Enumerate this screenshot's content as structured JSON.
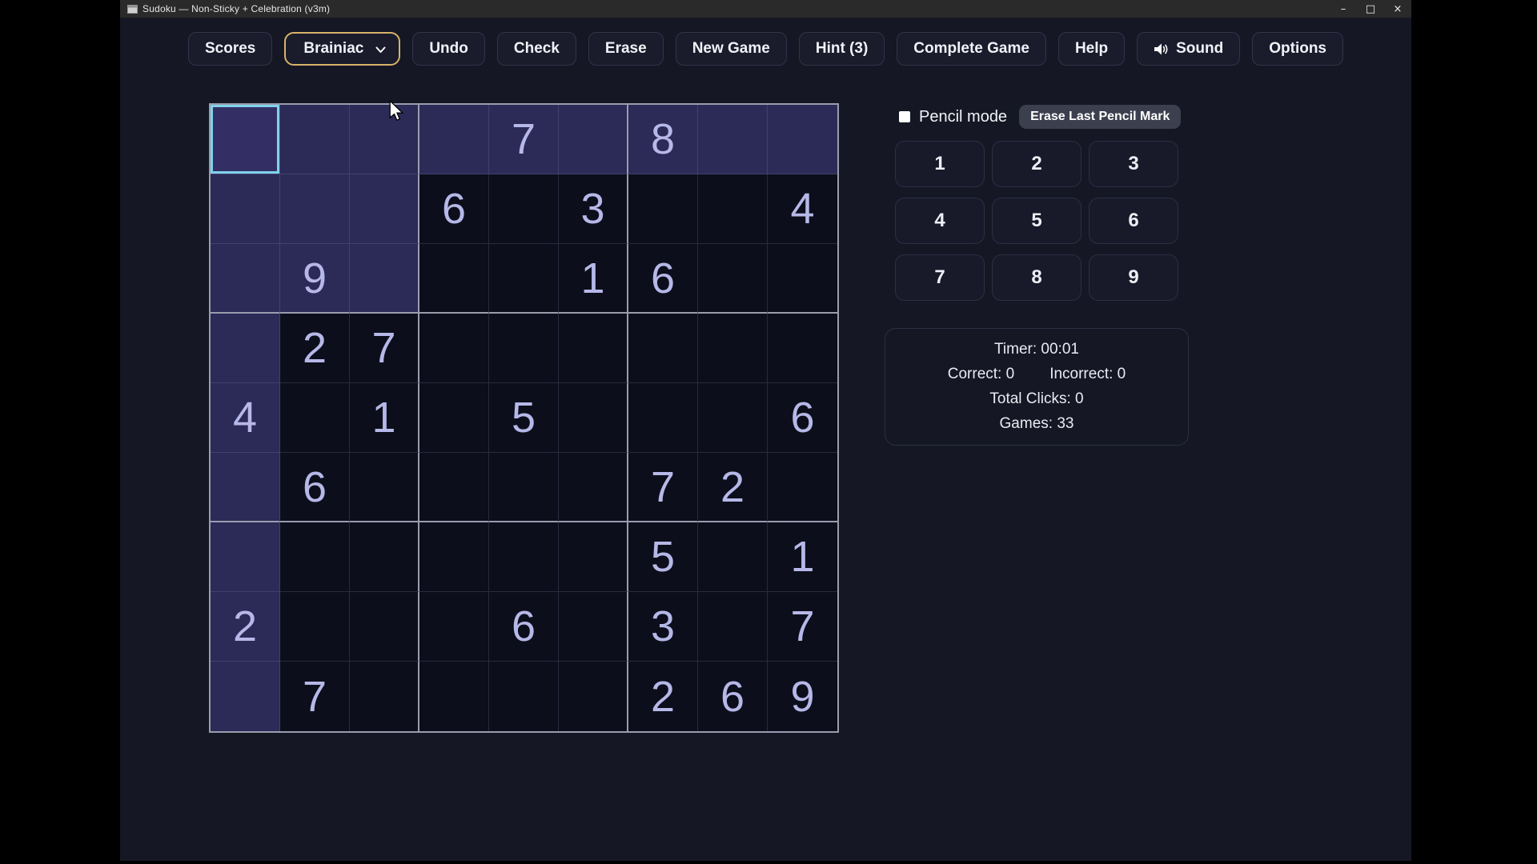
{
  "window": {
    "title": "Sudoku — Non-Sticky + Celebration (v3m)",
    "controls": {
      "minimize_glyph": "–",
      "maximize_glyph": "□",
      "close_glyph": "×"
    }
  },
  "toolbar": {
    "buttons": [
      {
        "label": "Scores",
        "type": "button"
      },
      {
        "label": "Brainiac",
        "type": "dropdown"
      },
      {
        "label": "Undo",
        "type": "button"
      },
      {
        "label": "Check",
        "type": "button"
      },
      {
        "label": "Erase",
        "type": "button"
      },
      {
        "label": "New Game",
        "type": "button"
      },
      {
        "label": "Hint (3)",
        "type": "button"
      },
      {
        "label": "Complete Game",
        "type": "button"
      },
      {
        "label": "Help",
        "type": "button"
      },
      {
        "label": "Sound",
        "type": "button",
        "icon": "speaker"
      },
      {
        "label": "Options",
        "type": "button"
      }
    ]
  },
  "board": {
    "selected": {
      "row": 0,
      "col": 0
    },
    "cells": [
      [
        "",
        "",
        "",
        "",
        "7",
        "",
        "8",
        "",
        ""
      ],
      [
        "",
        "",
        "",
        "6",
        "",
        "3",
        "",
        "",
        "4"
      ],
      [
        "",
        "9",
        "",
        "",
        "",
        "1",
        "6",
        "",
        ""
      ],
      [
        "",
        "2",
        "7",
        "",
        "",
        "",
        "",
        "",
        ""
      ],
      [
        "4",
        "",
        "1",
        "",
        "5",
        "",
        "",
        "",
        "6"
      ],
      [
        "",
        "6",
        "",
        "",
        "",
        "",
        "7",
        "2",
        ""
      ],
      [
        "",
        "",
        "",
        "",
        "",
        "",
        "5",
        "",
        "1"
      ],
      [
        "2",
        "",
        "",
        "",
        "6",
        "",
        "3",
        "",
        "7"
      ],
      [
        "",
        "7",
        "",
        "",
        "",
        "",
        "2",
        "6",
        "9"
      ]
    ]
  },
  "side_panel": {
    "pencil_mode": {
      "label": "Pencil mode",
      "checked": false
    },
    "erase_last_button": "Erase Last Pencil Mark",
    "numpad": [
      "1",
      "2",
      "3",
      "4",
      "5",
      "6",
      "7",
      "8",
      "9"
    ],
    "stats": {
      "timer": "Timer: 00:01",
      "correct": "Correct: 0",
      "incorrect": "Incorrect: 0",
      "total_clicks": "Total Clicks: 0",
      "games": "Games: 33"
    }
  },
  "colors": {
    "app_background": "#151724",
    "titlebar": "#2a2a2a",
    "cell_dark": "#0c0e1b",
    "cell_highlight": "#2c2a57",
    "cell_selected": "#332f64",
    "selected_border": "#7fd2ea",
    "box_line": "#9b9cae",
    "digit": "#b6b8e8",
    "accent_gold": "#d7b36a",
    "erase_button_bg": "#3c3f4d"
  }
}
